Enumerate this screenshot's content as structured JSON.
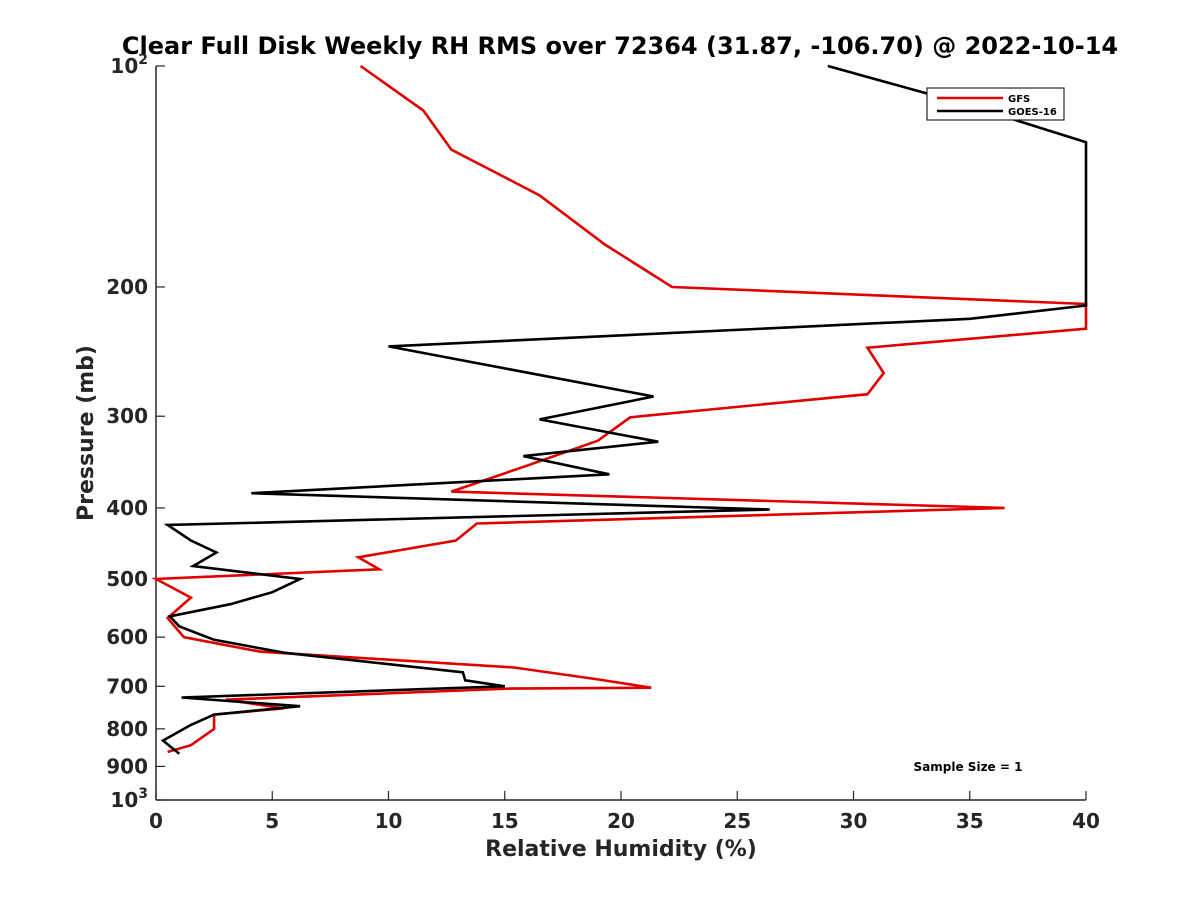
{
  "chart_data": {
    "type": "line",
    "title": "Clear Full Disk Weekly RH RMS over 72364 (31.87, -106.70) @ 2022-10-14",
    "xlabel": "Relative Humidity (%)",
    "ylabel": "Pressure (mb)",
    "xlim": [
      0,
      40
    ],
    "ylim": [
      100,
      1000
    ],
    "y_scale": "log",
    "y_reversed": true,
    "grid": false,
    "legend_position": "top-right",
    "x_ticks": [
      0,
      5,
      10,
      15,
      20,
      25,
      30,
      35,
      40
    ],
    "x_tick_labels": [
      "0",
      "5",
      "10",
      "15",
      "20",
      "25",
      "30",
      "35",
      "40"
    ],
    "y_ticks": [
      100,
      200,
      300,
      400,
      500,
      600,
      700,
      800,
      900,
      1000
    ],
    "y_tick_labels": [
      "10^2",
      "200",
      "300",
      "400",
      "500",
      "600",
      "700",
      "800",
      "900",
      "10^3"
    ],
    "annotation": "Sample Size = 1",
    "series": [
      {
        "name": "GFS",
        "color": "#e00000",
        "points": [
          [
            8.8,
            100
          ],
          [
            11.5,
            115
          ],
          [
            12.7,
            130
          ],
          [
            16.5,
            150
          ],
          [
            19.3,
            175
          ],
          [
            22.2,
            200
          ],
          [
            40.0,
            211
          ],
          [
            40.0,
            228
          ],
          [
            30.6,
            242
          ],
          [
            31.3,
            262
          ],
          [
            30.6,
            280
          ],
          [
            20.4,
            301
          ],
          [
            19.0,
            324
          ],
          [
            16.0,
            350
          ],
          [
            12.7,
            380
          ],
          [
            36.5,
            400
          ],
          [
            13.8,
            420
          ],
          [
            12.9,
            443
          ],
          [
            8.7,
            467
          ],
          [
            9.6,
            485
          ],
          [
            0.0,
            500
          ],
          [
            1.5,
            530
          ],
          [
            0.5,
            565
          ],
          [
            1.2,
            600
          ],
          [
            4.5,
            628
          ],
          [
            15.4,
            660
          ],
          [
            19.0,
            685
          ],
          [
            21.3,
            703
          ],
          [
            15.2,
            705
          ],
          [
            3.0,
            730
          ],
          [
            5.5,
            750
          ],
          [
            2.5,
            765
          ],
          [
            2.5,
            800
          ],
          [
            1.5,
            842
          ],
          [
            0.5,
            860
          ]
        ]
      },
      {
        "name": "GOES-16",
        "color": "#000000",
        "points": [
          [
            28.9,
            100
          ],
          [
            34.5,
            112
          ],
          [
            40.0,
            127
          ],
          [
            40.0,
            212
          ],
          [
            35.0,
            221
          ],
          [
            10.0,
            241
          ],
          [
            21.4,
            282
          ],
          [
            16.5,
            303
          ],
          [
            21.6,
            325
          ],
          [
            15.8,
            340
          ],
          [
            19.5,
            360
          ],
          [
            4.1,
            382
          ],
          [
            26.4,
            402
          ],
          [
            0.5,
            422
          ],
          [
            1.5,
            443
          ],
          [
            2.6,
            460
          ],
          [
            1.6,
            480
          ],
          [
            6.2,
            500
          ],
          [
            5.0,
            521
          ],
          [
            3.2,
            541
          ],
          [
            0.6,
            562
          ],
          [
            1.0,
            580
          ],
          [
            2.5,
            605
          ],
          [
            5.5,
            630
          ],
          [
            13.2,
            670
          ],
          [
            13.3,
            687
          ],
          [
            15.0,
            700
          ],
          [
            1.1,
            725
          ],
          [
            6.2,
            745
          ],
          [
            2.5,
            765
          ],
          [
            1.5,
            790
          ],
          [
            0.3,
            830
          ],
          [
            1.0,
            865
          ]
        ]
      }
    ]
  }
}
